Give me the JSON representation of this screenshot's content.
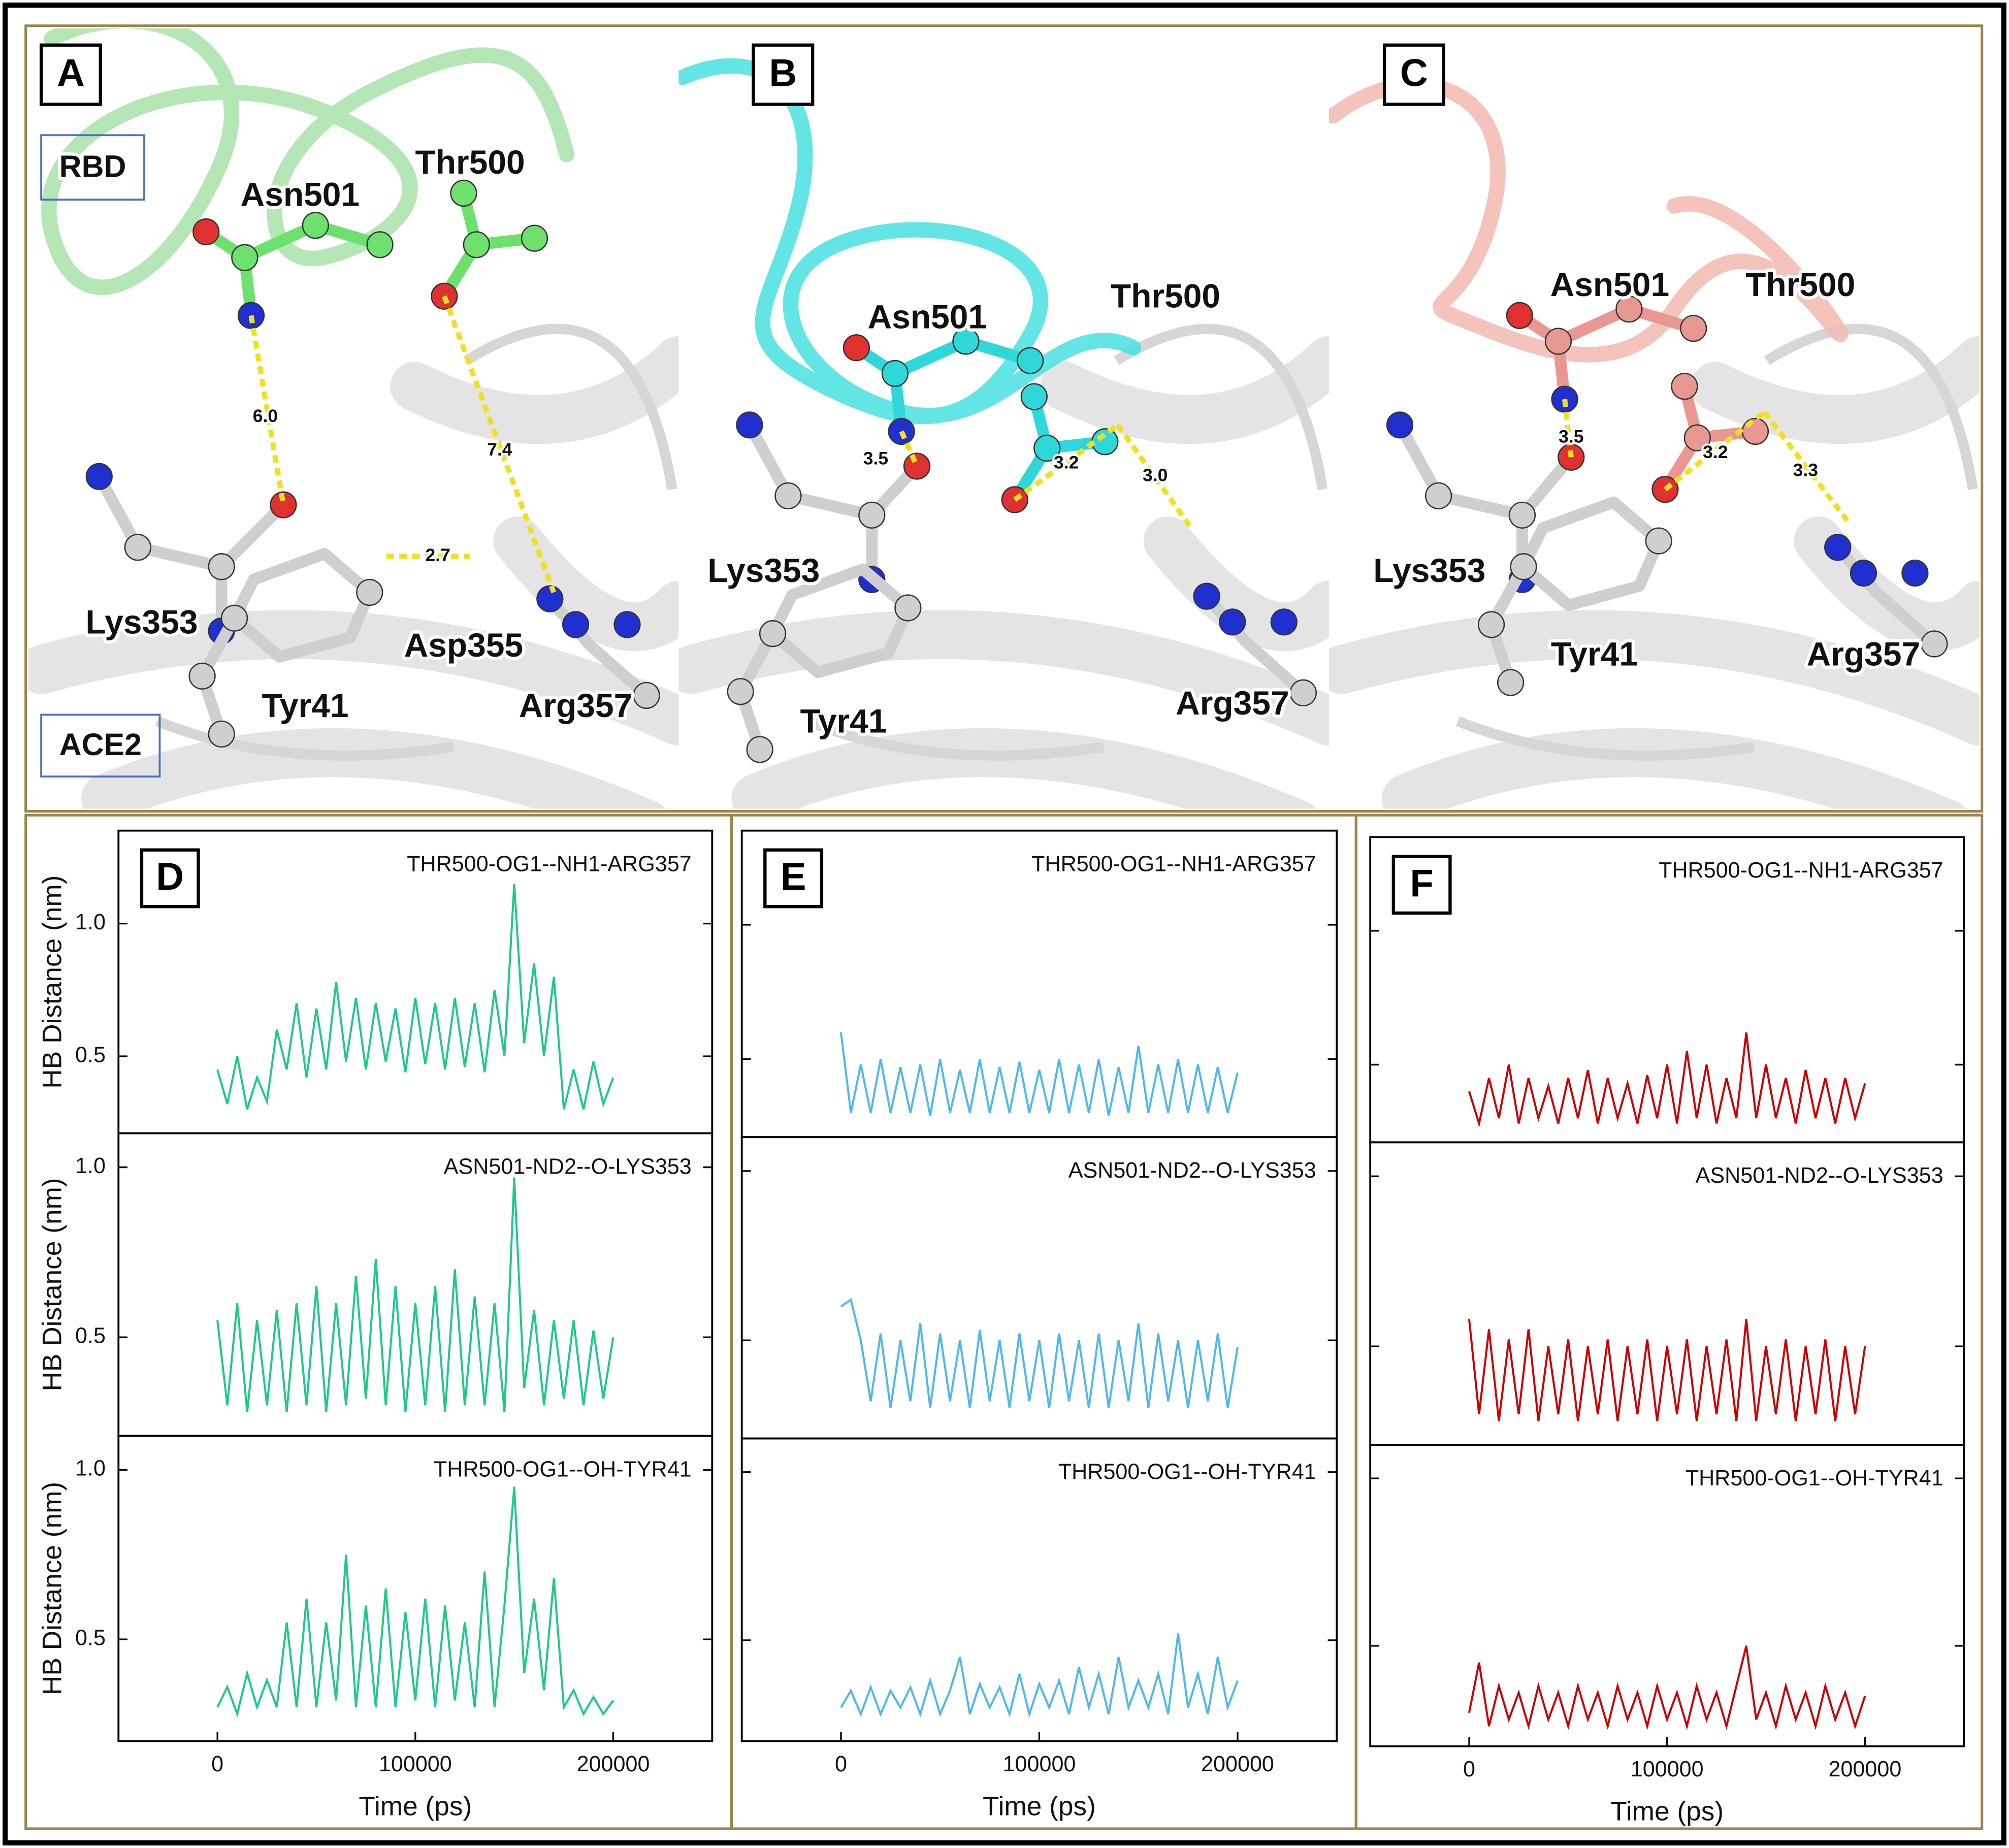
{
  "structures": [
    {
      "label": "A",
      "color": "#a8e2a8",
      "atom_color": "#6ee06e",
      "boxes": [
        "RBD",
        "ACE2"
      ],
      "residues": [
        "Asn501",
        "Thr500",
        "Lys353",
        "Tyr41",
        "Asp355",
        "Arg357"
      ],
      "distances": [
        6,
        7.4,
        2.7
      ],
      "distance_labels": [
        "6.0",
        "7.4",
        "2.7"
      ]
    },
    {
      "label": "B",
      "color": "#48e0e0",
      "atom_color": "#2fd8d8",
      "residues": [
        "Asn501",
        "Thr500",
        "Lys353",
        "Tyr41",
        "Arg357"
      ],
      "distances": [
        3.5,
        3.2,
        3
      ],
      "distance_labels": [
        "3.5",
        "3.2",
        "3.0"
      ]
    },
    {
      "label": "C",
      "color": "#f2b9b0",
      "atom_color": "#e89890",
      "residues": [
        "Asn501",
        "Thr500",
        "Lys353",
        "Tyr41",
        "Arg357"
      ],
      "distances": [
        3.5,
        3.2,
        3.3
      ],
      "distance_labels": [
        "3.5",
        "3.2",
        "3.3"
      ]
    }
  ],
  "chart_data": [
    {
      "type": "line",
      "panel_label": "D",
      "title": "THR500-OG1--NH1-ARG357",
      "y_label": "HB Distance (nm)",
      "color": "#1dc98b",
      "xlim": [
        -50000,
        250000
      ],
      "ylim": [
        0.21,
        1.35
      ],
      "yticks": [
        0.5,
        {
          "value": 1,
          "label": "1.0"
        }
      ],
      "ytick_labels": true,
      "x": [
        0,
        5000,
        10000,
        15000,
        20000,
        25000,
        30000,
        35000,
        40000,
        45000,
        50000,
        55000,
        60000,
        65000,
        70000,
        75000,
        80000,
        85000,
        90000,
        95000,
        100000,
        105000,
        110000,
        115000,
        120000,
        125000,
        130000,
        135000,
        140000,
        145000,
        150000,
        155000,
        160000,
        165000,
        170000,
        175000,
        180000,
        185000,
        190000,
        195000,
        200000
      ],
      "values": [
        0.45,
        0.32,
        0.5,
        0.3,
        0.42,
        0.33,
        0.6,
        0.45,
        0.7,
        0.42,
        0.68,
        0.45,
        0.78,
        0.48,
        0.72,
        0.45,
        0.7,
        0.48,
        0.68,
        0.44,
        0.72,
        0.47,
        0.7,
        0.45,
        0.72,
        0.46,
        0.7,
        0.44,
        0.75,
        0.5,
        1.15,
        0.55,
        0.85,
        0.5,
        0.8,
        0.3,
        0.45,
        0.3,
        0.48,
        0.32,
        0.42
      ]
    },
    {
      "type": "line",
      "title": "ASN501-ND2--O-LYS353",
      "y_label": "HB Distance (nm)",
      "color": "#1dc98b",
      "xlim": [
        -50000,
        250000
      ],
      "ylim": [
        0.21,
        1.1
      ],
      "yticks": [
        0.5,
        {
          "value": 1,
          "label": "1.0"
        }
      ],
      "ytick_labels": true,
      "x": [
        0,
        5000,
        10000,
        15000,
        20000,
        25000,
        30000,
        35000,
        40000,
        45000,
        50000,
        55000,
        60000,
        65000,
        70000,
        75000,
        80000,
        85000,
        90000,
        95000,
        100000,
        105000,
        110000,
        115000,
        120000,
        125000,
        130000,
        135000,
        140000,
        145000,
        150000,
        155000,
        160000,
        165000,
        170000,
        175000,
        180000,
        185000,
        190000,
        195000,
        200000
      ],
      "values": [
        0.55,
        0.3,
        0.6,
        0.28,
        0.55,
        0.3,
        0.58,
        0.28,
        0.6,
        0.3,
        0.65,
        0.28,
        0.6,
        0.3,
        0.68,
        0.32,
        0.73,
        0.3,
        0.65,
        0.28,
        0.6,
        0.3,
        0.65,
        0.28,
        0.7,
        0.3,
        0.62,
        0.3,
        0.6,
        0.28,
        0.97,
        0.35,
        0.58,
        0.3,
        0.55,
        0.32,
        0.55,
        0.3,
        0.52,
        0.32,
        0.5
      ]
    },
    {
      "type": "line",
      "title": "THR500-OG1--OH-TYR41",
      "y_label": "HB Distance (nm)",
      "x_label": "Time (ps)",
      "color": "#1dc98b",
      "xlim": [
        -50000,
        250000
      ],
      "ylim": [
        0.2,
        1.1
      ],
      "yticks": [
        0.5,
        {
          "value": 1,
          "label": "1.0"
        }
      ],
      "ytick_labels": true,
      "xticks": [
        0,
        100000,
        200000
      ],
      "x": [
        0,
        5000,
        10000,
        15000,
        20000,
        25000,
        30000,
        35000,
        40000,
        45000,
        50000,
        55000,
        60000,
        65000,
        70000,
        75000,
        80000,
        85000,
        90000,
        95000,
        100000,
        105000,
        110000,
        115000,
        120000,
        125000,
        130000,
        135000,
        140000,
        145000,
        150000,
        155000,
        160000,
        165000,
        170000,
        175000,
        180000,
        185000,
        190000,
        195000,
        200000
      ],
      "values": [
        0.3,
        0.36,
        0.28,
        0.4,
        0.3,
        0.38,
        0.3,
        0.55,
        0.3,
        0.62,
        0.3,
        0.55,
        0.32,
        0.75,
        0.3,
        0.6,
        0.3,
        0.65,
        0.3,
        0.58,
        0.32,
        0.62,
        0.3,
        0.6,
        0.32,
        0.55,
        0.3,
        0.7,
        0.3,
        0.6,
        0.95,
        0.4,
        0.62,
        0.35,
        0.68,
        0.3,
        0.35,
        0.28,
        0.33,
        0.28,
        0.32
      ]
    },
    {
      "type": "line",
      "panel_label": "E",
      "title": "THR500-OG1--NH1-ARG357",
      "color": "#4db8f0",
      "xlim": [
        -50000,
        250000
      ],
      "ylim": [
        0.21,
        1.35
      ],
      "yticks": [
        0.5,
        1
      ],
      "ytick_labels": false,
      "x": [
        0,
        5000,
        10000,
        15000,
        20000,
        25000,
        30000,
        35000,
        40000,
        45000,
        50000,
        55000,
        60000,
        65000,
        70000,
        75000,
        80000,
        85000,
        90000,
        95000,
        100000,
        105000,
        110000,
        115000,
        120000,
        125000,
        130000,
        135000,
        140000,
        145000,
        150000,
        155000,
        160000,
        165000,
        170000,
        175000,
        180000,
        185000,
        190000,
        195000,
        200000
      ],
      "values": [
        0.6,
        0.3,
        0.48,
        0.3,
        0.5,
        0.3,
        0.47,
        0.3,
        0.48,
        0.29,
        0.5,
        0.3,
        0.46,
        0.3,
        0.5,
        0.3,
        0.47,
        0.3,
        0.49,
        0.3,
        0.46,
        0.3,
        0.5,
        0.3,
        0.48,
        0.3,
        0.5,
        0.29,
        0.47,
        0.3,
        0.55,
        0.3,
        0.48,
        0.3,
        0.5,
        0.3,
        0.48,
        0.3,
        0.47,
        0.3,
        0.45
      ]
    },
    {
      "type": "line",
      "title": "ASN501-ND2--O-LYS353",
      "color": "#4db8f0",
      "xlim": [
        -50000,
        250000
      ],
      "ylim": [
        0.21,
        1.1
      ],
      "yticks": [
        0.5,
        1
      ],
      "ytick_labels": false,
      "x": [
        0,
        5000,
        10000,
        15000,
        20000,
        25000,
        30000,
        35000,
        40000,
        45000,
        50000,
        55000,
        60000,
        65000,
        70000,
        75000,
        80000,
        85000,
        90000,
        95000,
        100000,
        105000,
        110000,
        115000,
        120000,
        125000,
        130000,
        135000,
        140000,
        145000,
        150000,
        155000,
        160000,
        165000,
        170000,
        175000,
        180000,
        185000,
        190000,
        195000,
        200000
      ],
      "values": [
        0.6,
        0.62,
        0.5,
        0.32,
        0.52,
        0.3,
        0.5,
        0.32,
        0.55,
        0.3,
        0.52,
        0.32,
        0.5,
        0.3,
        0.53,
        0.32,
        0.5,
        0.3,
        0.52,
        0.32,
        0.5,
        0.3,
        0.52,
        0.32,
        0.5,
        0.3,
        0.52,
        0.3,
        0.5,
        0.32,
        0.55,
        0.3,
        0.52,
        0.32,
        0.5,
        0.3,
        0.5,
        0.32,
        0.52,
        0.3,
        0.48
      ]
    },
    {
      "type": "line",
      "title": "THR500-OG1--OH-TYR41",
      "x_label": "Time (ps)",
      "color": "#4db8f0",
      "xlim": [
        -50000,
        250000
      ],
      "ylim": [
        0.2,
        1.1
      ],
      "yticks": [
        0.5,
        1
      ],
      "ytick_labels": false,
      "xticks": [
        0,
        100000,
        200000
      ],
      "x": [
        0,
        5000,
        10000,
        15000,
        20000,
        25000,
        30000,
        35000,
        40000,
        45000,
        50000,
        55000,
        60000,
        65000,
        70000,
        75000,
        80000,
        85000,
        90000,
        95000,
        100000,
        105000,
        110000,
        115000,
        120000,
        125000,
        130000,
        135000,
        140000,
        145000,
        150000,
        155000,
        160000,
        165000,
        170000,
        175000,
        180000,
        185000,
        190000,
        195000,
        200000
      ],
      "values": [
        0.3,
        0.35,
        0.28,
        0.36,
        0.28,
        0.35,
        0.3,
        0.36,
        0.28,
        0.38,
        0.28,
        0.35,
        0.45,
        0.28,
        0.37,
        0.3,
        0.36,
        0.28,
        0.4,
        0.28,
        0.37,
        0.3,
        0.38,
        0.28,
        0.42,
        0.3,
        0.4,
        0.28,
        0.45,
        0.3,
        0.38,
        0.3,
        0.4,
        0.28,
        0.52,
        0.3,
        0.4,
        0.28,
        0.45,
        0.3,
        0.38
      ]
    },
    {
      "type": "line",
      "panel_label": "F",
      "title": "THR500-OG1--NH1-ARG357",
      "color": "#cc0000",
      "xlim": [
        -50000,
        250000
      ],
      "ylim": [
        0.21,
        1.35
      ],
      "yticks": [
        0.5,
        1
      ],
      "ytick_labels": false,
      "x": [
        0,
        5000,
        10000,
        15000,
        20000,
        25000,
        30000,
        35000,
        40000,
        45000,
        50000,
        55000,
        60000,
        65000,
        70000,
        75000,
        80000,
        85000,
        90000,
        95000,
        100000,
        105000,
        110000,
        115000,
        120000,
        125000,
        130000,
        135000,
        140000,
        145000,
        150000,
        155000,
        160000,
        165000,
        170000,
        175000,
        180000,
        185000,
        190000,
        195000,
        200000
      ],
      "values": [
        0.4,
        0.28,
        0.45,
        0.3,
        0.5,
        0.28,
        0.45,
        0.3,
        0.42,
        0.28,
        0.45,
        0.3,
        0.48,
        0.28,
        0.45,
        0.3,
        0.43,
        0.28,
        0.46,
        0.3,
        0.5,
        0.28,
        0.55,
        0.3,
        0.5,
        0.28,
        0.45,
        0.3,
        0.62,
        0.3,
        0.5,
        0.3,
        0.45,
        0.28,
        0.48,
        0.3,
        0.45,
        0.28,
        0.45,
        0.3,
        0.43
      ]
    },
    {
      "type": "line",
      "title": "ASN501-ND2--O-LYS353",
      "color": "#cc0000",
      "xlim": [
        -50000,
        250000
      ],
      "ylim": [
        0.21,
        1.1
      ],
      "yticks": [
        0.5,
        1
      ],
      "ytick_labels": false,
      "x": [
        0,
        5000,
        10000,
        15000,
        20000,
        25000,
        30000,
        35000,
        40000,
        45000,
        50000,
        55000,
        60000,
        65000,
        70000,
        75000,
        80000,
        85000,
        90000,
        95000,
        100000,
        105000,
        110000,
        115000,
        120000,
        125000,
        130000,
        135000,
        140000,
        145000,
        150000,
        155000,
        160000,
        165000,
        170000,
        175000,
        180000,
        185000,
        190000,
        195000,
        200000
      ],
      "values": [
        0.58,
        0.3,
        0.55,
        0.28,
        0.52,
        0.3,
        0.55,
        0.28,
        0.5,
        0.3,
        0.52,
        0.28,
        0.5,
        0.3,
        0.52,
        0.28,
        0.5,
        0.3,
        0.52,
        0.28,
        0.5,
        0.3,
        0.52,
        0.28,
        0.5,
        0.3,
        0.52,
        0.28,
        0.58,
        0.28,
        0.5,
        0.3,
        0.52,
        0.28,
        0.5,
        0.3,
        0.52,
        0.28,
        0.5,
        0.3,
        0.5
      ]
    },
    {
      "type": "line",
      "title": "THR500-OG1--OH-TYR41",
      "x_label": "Time (ps)",
      "color": "#cc0000",
      "xlim": [
        -50000,
        250000
      ],
      "ylim": [
        0.2,
        1.1
      ],
      "yticks": [
        0.5,
        1
      ],
      "ytick_labels": false,
      "xticks": [
        0,
        100000,
        200000
      ],
      "x": [
        0,
        5000,
        10000,
        15000,
        20000,
        25000,
        30000,
        35000,
        40000,
        45000,
        50000,
        55000,
        60000,
        65000,
        70000,
        75000,
        80000,
        85000,
        90000,
        95000,
        100000,
        105000,
        110000,
        115000,
        120000,
        125000,
        130000,
        135000,
        140000,
        145000,
        150000,
        155000,
        160000,
        165000,
        170000,
        175000,
        180000,
        185000,
        190000,
        195000,
        200000
      ],
      "values": [
        0.3,
        0.45,
        0.26,
        0.38,
        0.28,
        0.36,
        0.26,
        0.38,
        0.28,
        0.36,
        0.26,
        0.38,
        0.28,
        0.36,
        0.26,
        0.38,
        0.28,
        0.36,
        0.26,
        0.38,
        0.28,
        0.36,
        0.26,
        0.38,
        0.28,
        0.36,
        0.26,
        0.38,
        0.5,
        0.28,
        0.36,
        0.26,
        0.38,
        0.28,
        0.36,
        0.26,
        0.38,
        0.28,
        0.36,
        0.26,
        0.35
      ]
    }
  ]
}
